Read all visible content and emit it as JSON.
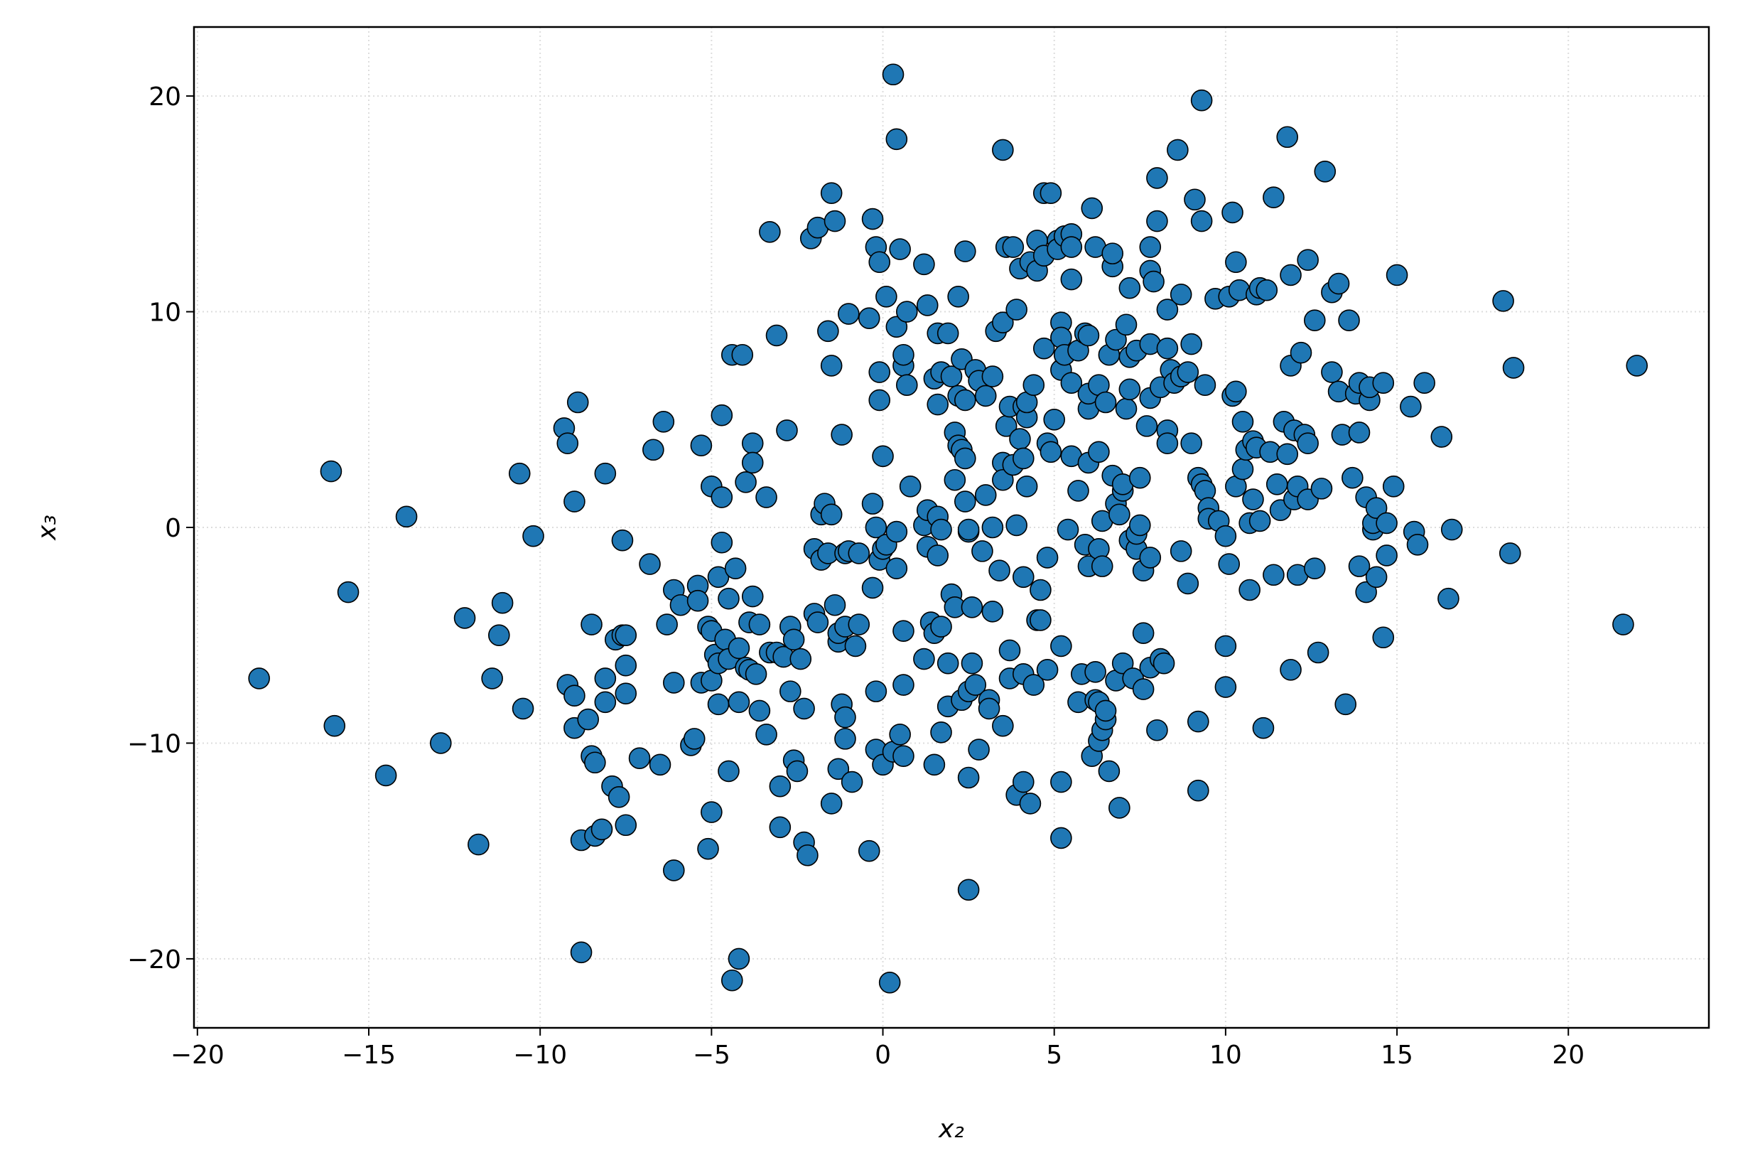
{
  "chart_data": {
    "type": "scatter",
    "xlabel": "x₂",
    "ylabel": "x₃",
    "color": "#1f77b4",
    "edgecolor": "#000000",
    "grid": true,
    "xlim": [
      -20.1,
      24.1
    ],
    "ylim": [
      -23.2,
      23.2
    ],
    "xticks": [
      {
        "value": -20,
        "label": "−20"
      },
      {
        "value": -15,
        "label": "−15"
      },
      {
        "value": -10,
        "label": "−10"
      },
      {
        "value": -5,
        "label": "−5"
      },
      0,
      5,
      10,
      15,
      20
    ],
    "yticks": [
      {
        "value": -20,
        "label": "−20"
      },
      {
        "value": -10,
        "label": "−10"
      },
      0,
      10,
      20
    ],
    "x": [
      -18.2,
      -16.1,
      -16.0,
      -15.6,
      -14.5,
      -13.9,
      -12.9,
      -12.2,
      -11.8,
      -11.4,
      -11.2,
      -11.1,
      -10.6,
      -10.5,
      -10.2,
      -9.3,
      -9.2,
      -9.2,
      -9.0,
      -9.0,
      -8.9,
      -9.0,
      -8.8,
      -8.8,
      -8.6,
      -8.5,
      -8.5,
      -8.4,
      -8.4,
      -8.2,
      -8.1,
      -8.1,
      -8.1,
      -7.9,
      -7.8,
      -7.7,
      -7.6,
      -7.6,
      -7.5,
      -7.5,
      -7.5,
      -7.5,
      -7.1,
      -6.8,
      -6.7,
      -6.5,
      -6.4,
      -6.3,
      -6.1,
      -6.1,
      -6.1,
      -5.9,
      -5.6,
      -5.5,
      -5.4,
      -5.4,
      -5.3,
      -5.3,
      -5.1,
      -5.1,
      -5.0,
      -5.0,
      -5.0,
      -5.0,
      -4.9,
      -4.8,
      -4.8,
      -4.8,
      -4.7,
      -4.7,
      -4.7,
      -4.6,
      -4.5,
      -4.5,
      -4.5,
      -4.4,
      -4.4,
      -4.3,
      -4.2,
      -4.2,
      -4.2,
      -4.1,
      -4.0,
      -4.0,
      -3.9,
      -3.9,
      -3.8,
      -3.8,
      -3.8,
      -3.7,
      -3.6,
      -3.6,
      -3.4,
      -3.4,
      -3.3,
      -3.3,
      -3.1,
      -3.1,
      -3.0,
      -3.0,
      -2.9,
      -2.8,
      -2.7,
      -2.7,
      -2.6,
      -2.6,
      -2.5,
      -2.4,
      -2.3,
      -2.3,
      -2.2,
      -2.1,
      -2.0,
      -2.0,
      -1.9,
      -1.9,
      -1.8,
      -1.8,
      -1.7,
      -1.6,
      -1.6,
      -1.5,
      -1.5,
      -1.5,
      -1.5,
      -1.4,
      -1.4,
      -1.3,
      -1.3,
      -1.3,
      -1.2,
      -1.2,
      -1.1,
      -1.1,
      -1.1,
      -1.1,
      -1.0,
      -1.0,
      -0.9,
      -0.8,
      -0.7,
      -0.7,
      -0.4,
      -0.4,
      -0.3,
      -0.3,
      -0.3,
      -0.2,
      -0.2,
      -0.2,
      -0.2,
      -0.1,
      -0.1,
      -0.1,
      -0.1,
      0.0,
      0.0,
      0.0,
      0.1,
      0.1,
      0.2,
      0.3,
      0.3,
      0.4,
      0.4,
      0.4,
      0.4,
      0.5,
      0.5,
      0.6,
      0.6,
      0.6,
      0.6,
      0.6,
      0.7,
      0.7,
      0.8,
      1.2,
      1.2,
      1.2,
      1.3,
      1.3,
      1.3,
      1.4,
      1.5,
      1.5,
      1.5,
      1.6,
      1.6,
      1.6,
      1.6,
      1.7,
      1.7,
      1.7,
      1.7,
      1.9,
      1.9,
      1.9,
      2.0,
      2.0,
      2.1,
      2.1,
      2.1,
      2.2,
      2.2,
      2.2,
      2.3,
      2.3,
      2.3,
      2.4,
      2.4,
      2.4,
      2.4,
      2.5,
      2.5,
      2.5,
      2.5,
      2.5,
      2.6,
      2.6,
      2.7,
      2.7,
      2.8,
      2.8,
      2.9,
      3.0,
      3.0,
      3.1,
      3.1,
      3.2,
      3.2,
      3.2,
      3.3,
      3.4,
      3.5,
      3.5,
      3.5,
      3.5,
      3.5,
      3.6,
      3.6,
      3.7,
      3.7,
      3.7,
      3.8,
      3.8,
      3.9,
      3.9,
      3.9,
      4.0,
      4.0,
      4.1,
      4.1,
      4.1,
      4.1,
      4.1,
      4.2,
      4.2,
      4.2,
      4.3,
      4.3,
      4.4,
      4.4,
      4.5,
      4.5,
      4.5,
      4.6,
      4.6,
      4.7,
      4.7,
      4.7,
      4.8,
      4.8,
      4.8,
      4.9,
      4.9,
      5.0,
      5.1,
      5.1,
      5.2,
      5.2,
      5.2,
      5.2,
      5.2,
      5.2,
      5.3,
      5.3,
      5.4,
      5.5,
      5.5,
      5.5,
      5.5,
      5.5,
      5.7,
      5.7,
      5.7,
      5.8,
      5.9,
      5.9,
      6.0,
      6.0,
      6.0,
      6.0,
      6.0,
      6.1,
      6.1,
      6.2,
      6.2,
      6.2,
      6.3,
      6.3,
      6.3,
      6.3,
      6.3,
      6.4,
      6.4,
      6.4,
      6.5,
      6.5,
      6.5,
      6.6,
      6.6,
      6.7,
      6.7,
      6.7,
      6.8,
      6.8,
      6.8,
      6.9,
      6.9,
      7.0,
      7.0,
      7.0,
      7.1,
      7.1,
      7.2,
      7.2,
      7.2,
      7.2,
      7.3,
      7.4,
      7.4,
      7.4,
      7.5,
      7.5,
      7.6,
      7.6,
      7.6,
      7.7,
      7.8,
      7.8,
      7.8,
      7.8,
      7.8,
      7.8,
      7.9,
      8.0,
      8.0,
      8.0,
      8.1,
      8.1,
      8.2,
      8.3,
      8.3,
      8.3,
      8.3,
      8.4,
      8.5,
      8.6,
      8.7,
      8.7,
      8.7,
      8.9,
      8.9,
      9.0,
      9.0,
      9.1,
      9.2,
      9.2,
      9.2,
      9.3,
      9.3,
      9.3,
      9.4,
      9.4,
      9.5,
      9.5,
      9.7,
      9.8,
      10.0,
      10.0,
      10.0,
      10.1,
      10.1,
      10.2,
      10.2,
      10.3,
      10.3,
      10.3,
      10.4,
      10.5,
      10.5,
      10.6,
      10.7,
      10.7,
      10.8,
      10.8,
      10.9,
      10.9,
      11.0,
      11.0,
      11.1,
      11.2,
      11.3,
      11.4,
      11.4,
      11.5,
      11.6,
      11.7,
      11.8,
      11.8,
      11.9,
      11.9,
      11.9,
      12.0,
      12.0,
      12.1,
      12.1,
      12.2,
      12.3,
      12.4,
      12.4,
      12.4,
      12.6,
      12.6,
      12.7,
      12.8,
      12.9,
      13.1,
      13.1,
      13.3,
      13.3,
      13.4,
      13.5,
      13.6,
      13.7,
      13.8,
      13.9,
      13.9,
      13.9,
      14.1,
      14.1,
      14.2,
      14.2,
      14.3,
      14.3,
      14.4,
      14.4,
      14.6,
      14.6,
      14.7,
      14.7,
      14.9,
      15.0,
      15.4,
      15.5,
      15.6,
      15.8,
      16.3,
      16.5,
      16.6,
      18.1,
      18.3,
      18.4,
      21.6,
      22.0
    ],
    "values": [
      -7.0,
      2.6,
      -9.2,
      -3.0,
      -11.5,
      0.5,
      -10.0,
      -4.2,
      -14.7,
      -7.0,
      -5.0,
      -3.5,
      2.5,
      -8.4,
      -0.4,
      4.6,
      3.9,
      -7.3,
      -9.3,
      1.2,
      5.8,
      -7.8,
      -14.5,
      -19.7,
      -8.9,
      -4.5,
      -10.6,
      -10.9,
      -14.3,
      -14.0,
      2.5,
      -7.0,
      -8.1,
      -12.0,
      -5.2,
      -12.5,
      -5.0,
      -0.6,
      -13.8,
      -6.4,
      -7.7,
      -5.0,
      -10.7,
      -1.7,
      3.6,
      -11.0,
      4.9,
      -4.5,
      -7.2,
      -15.9,
      -2.9,
      -3.6,
      -10.1,
      -9.8,
      -2.7,
      -3.4,
      3.8,
      -7.2,
      -4.6,
      -14.9,
      -4.8,
      1.9,
      -13.2,
      -7.1,
      -5.9,
      -6.3,
      -8.2,
      -2.3,
      5.2,
      -0.7,
      1.4,
      -5.2,
      -11.3,
      -3.3,
      -6.1,
      -21.0,
      8.0,
      -1.9,
      -20.0,
      -5.6,
      -8.1,
      8.0,
      -6.5,
      2.1,
      -4.4,
      -6.6,
      -3.2,
      3.9,
      3.0,
      -6.8,
      -8.5,
      -4.5,
      -9.6,
      1.4,
      13.7,
      -5.8,
      -5.8,
      8.9,
      -13.9,
      -12.0,
      -6.0,
      4.5,
      -4.6,
      -7.6,
      -5.2,
      -10.8,
      -11.3,
      -6.1,
      -8.4,
      -14.6,
      -15.2,
      13.4,
      -4.0,
      -1.0,
      -4.4,
      13.9,
      0.6,
      -1.5,
      1.1,
      9.1,
      -1.2,
      7.5,
      15.5,
      0.6,
      -12.8,
      -3.6,
      14.2,
      -5.3,
      -4.9,
      -11.2,
      4.3,
      -8.2,
      -4.6,
      -1.2,
      -9.8,
      -8.8,
      9.9,
      -1.1,
      -11.8,
      -5.5,
      -1.2,
      -4.5,
      -15.0,
      9.7,
      14.3,
      1.1,
      -2.8,
      -7.6,
      13.0,
      0.0,
      -10.3,
      7.2,
      12.3,
      -1.5,
      5.9,
      -11.0,
      -1.0,
      3.3,
      10.7,
      -0.8,
      -21.1,
      -10.4,
      21.0,
      18.0,
      -0.2,
      9.3,
      -1.9,
      -9.6,
      12.9,
      7.5,
      8.0,
      -10.6,
      -7.3,
      -4.8,
      6.6,
      10.0,
      1.9,
      12.2,
      -6.1,
      0.1,
      10.3,
      0.8,
      -0.9,
      -4.4,
      -4.9,
      -11.0,
      6.9,
      -1.3,
      5.7,
      0.5,
      9.0,
      -4.6,
      -9.5,
      7.2,
      -0.1,
      -8.3,
      -6.3,
      9.0,
      7.0,
      -3.1,
      -3.7,
      2.2,
      4.4,
      6.1,
      10.7,
      3.8,
      -8.0,
      7.8,
      3.6,
      3.2,
      1.2,
      12.8,
      5.9,
      -7.6,
      -0.2,
      -11.6,
      -16.8,
      -0.1,
      -6.3,
      -3.7,
      -7.3,
      7.3,
      6.8,
      -10.3,
      -1.1,
      1.5,
      6.1,
      -8.0,
      -8.4,
      -3.9,
      7.0,
      0.0,
      9.1,
      -2.0,
      17.5,
      3.0,
      -9.2,
      2.2,
      9.5,
      4.7,
      13.0,
      5.6,
      -7.0,
      -5.7,
      2.9,
      13.0,
      0.1,
      -12.4,
      10.1,
      12.0,
      4.1,
      5.6,
      3.2,
      -11.8,
      -2.3,
      -6.8,
      1.9,
      5.1,
      5.8,
      12.3,
      -12.8,
      -7.3,
      6.6,
      11.9,
      13.3,
      -4.3,
      -4.3,
      -2.9,
      15.5,
      8.3,
      12.6,
      3.9,
      -1.4,
      -6.6,
      15.5,
      3.5,
      5.0,
      13.3,
      12.9,
      7.3,
      9.5,
      8.8,
      -5.5,
      -11.8,
      -14.4,
      13.5,
      8.0,
      -0.1,
      3.3,
      6.7,
      11.5,
      13.6,
      13.0,
      1.7,
      8.2,
      -8.1,
      -6.8,
      9.0,
      -0.8,
      8.9,
      5.5,
      3.0,
      -1.8,
      6.2,
      14.8,
      -10.6,
      13.0,
      -8.0,
      -6.7,
      -9.9,
      6.6,
      -1.0,
      -8.1,
      3.5,
      -9.4,
      -1.8,
      0.3,
      -8.9,
      5.8,
      -8.5,
      -11.3,
      8.0,
      12.1,
      2.4,
      12.7,
      -7.1,
      8.7,
      1.1,
      -13.0,
      0.6,
      1.7,
      -6.3,
      2.0,
      9.4,
      5.5,
      -0.6,
      6.4,
      7.9,
      11.1,
      -7.0,
      8.2,
      -1.0,
      -0.3,
      2.3,
      0.1,
      -2.0,
      -7.5,
      -4.9,
      4.7,
      13.0,
      8.5,
      11.9,
      6.0,
      -1.4,
      -6.5,
      11.4,
      14.2,
      16.2,
      -9.4,
      -6.1,
      6.5,
      -6.3,
      8.3,
      4.5,
      3.9,
      10.1,
      7.3,
      6.7,
      17.5,
      10.8,
      7.0,
      -1.1,
      -2.6,
      7.2,
      3.9,
      8.5,
      15.2,
      -9.0,
      2.3,
      -12.2,
      14.2,
      19.8,
      2.0,
      6.6,
      1.7,
      0.9,
      0.4,
      10.6,
      0.3,
      -5.5,
      -7.4,
      -0.4,
      -1.7,
      10.7,
      6.1,
      14.6,
      12.3,
      6.3,
      1.9,
      11.0,
      4.9,
      2.7,
      3.6,
      -2.9,
      0.2,
      4.0,
      1.3,
      10.8,
      3.7,
      11.1,
      0.3,
      -9.3,
      11.0,
      3.5,
      15.3,
      -2.2,
      2.0,
      0.8,
      4.9,
      18.1,
      3.4,
      11.7,
      -6.6,
      7.5,
      1.3,
      4.5,
      -2.2,
      1.9,
      8.1,
      4.3,
      3.9,
      12.4,
      1.3,
      -1.9,
      9.6,
      -5.8,
      1.8,
      16.5,
      7.2,
      10.9,
      11.3,
      6.3,
      4.3,
      -8.2,
      9.6,
      2.3,
      6.2,
      6.7,
      -1.8,
      4.4,
      1.4,
      -3.0,
      5.9,
      6.5,
      -0.1,
      0.2,
      -2.3,
      0.9,
      6.7,
      -5.1,
      -1.3,
      0.2,
      1.9,
      11.7,
      5.6,
      -0.2,
      -0.8,
      6.7,
      4.2,
      -3.3,
      -0.1,
      10.5,
      -1.2,
      7.4,
      -4.5,
      7.5
    ]
  }
}
